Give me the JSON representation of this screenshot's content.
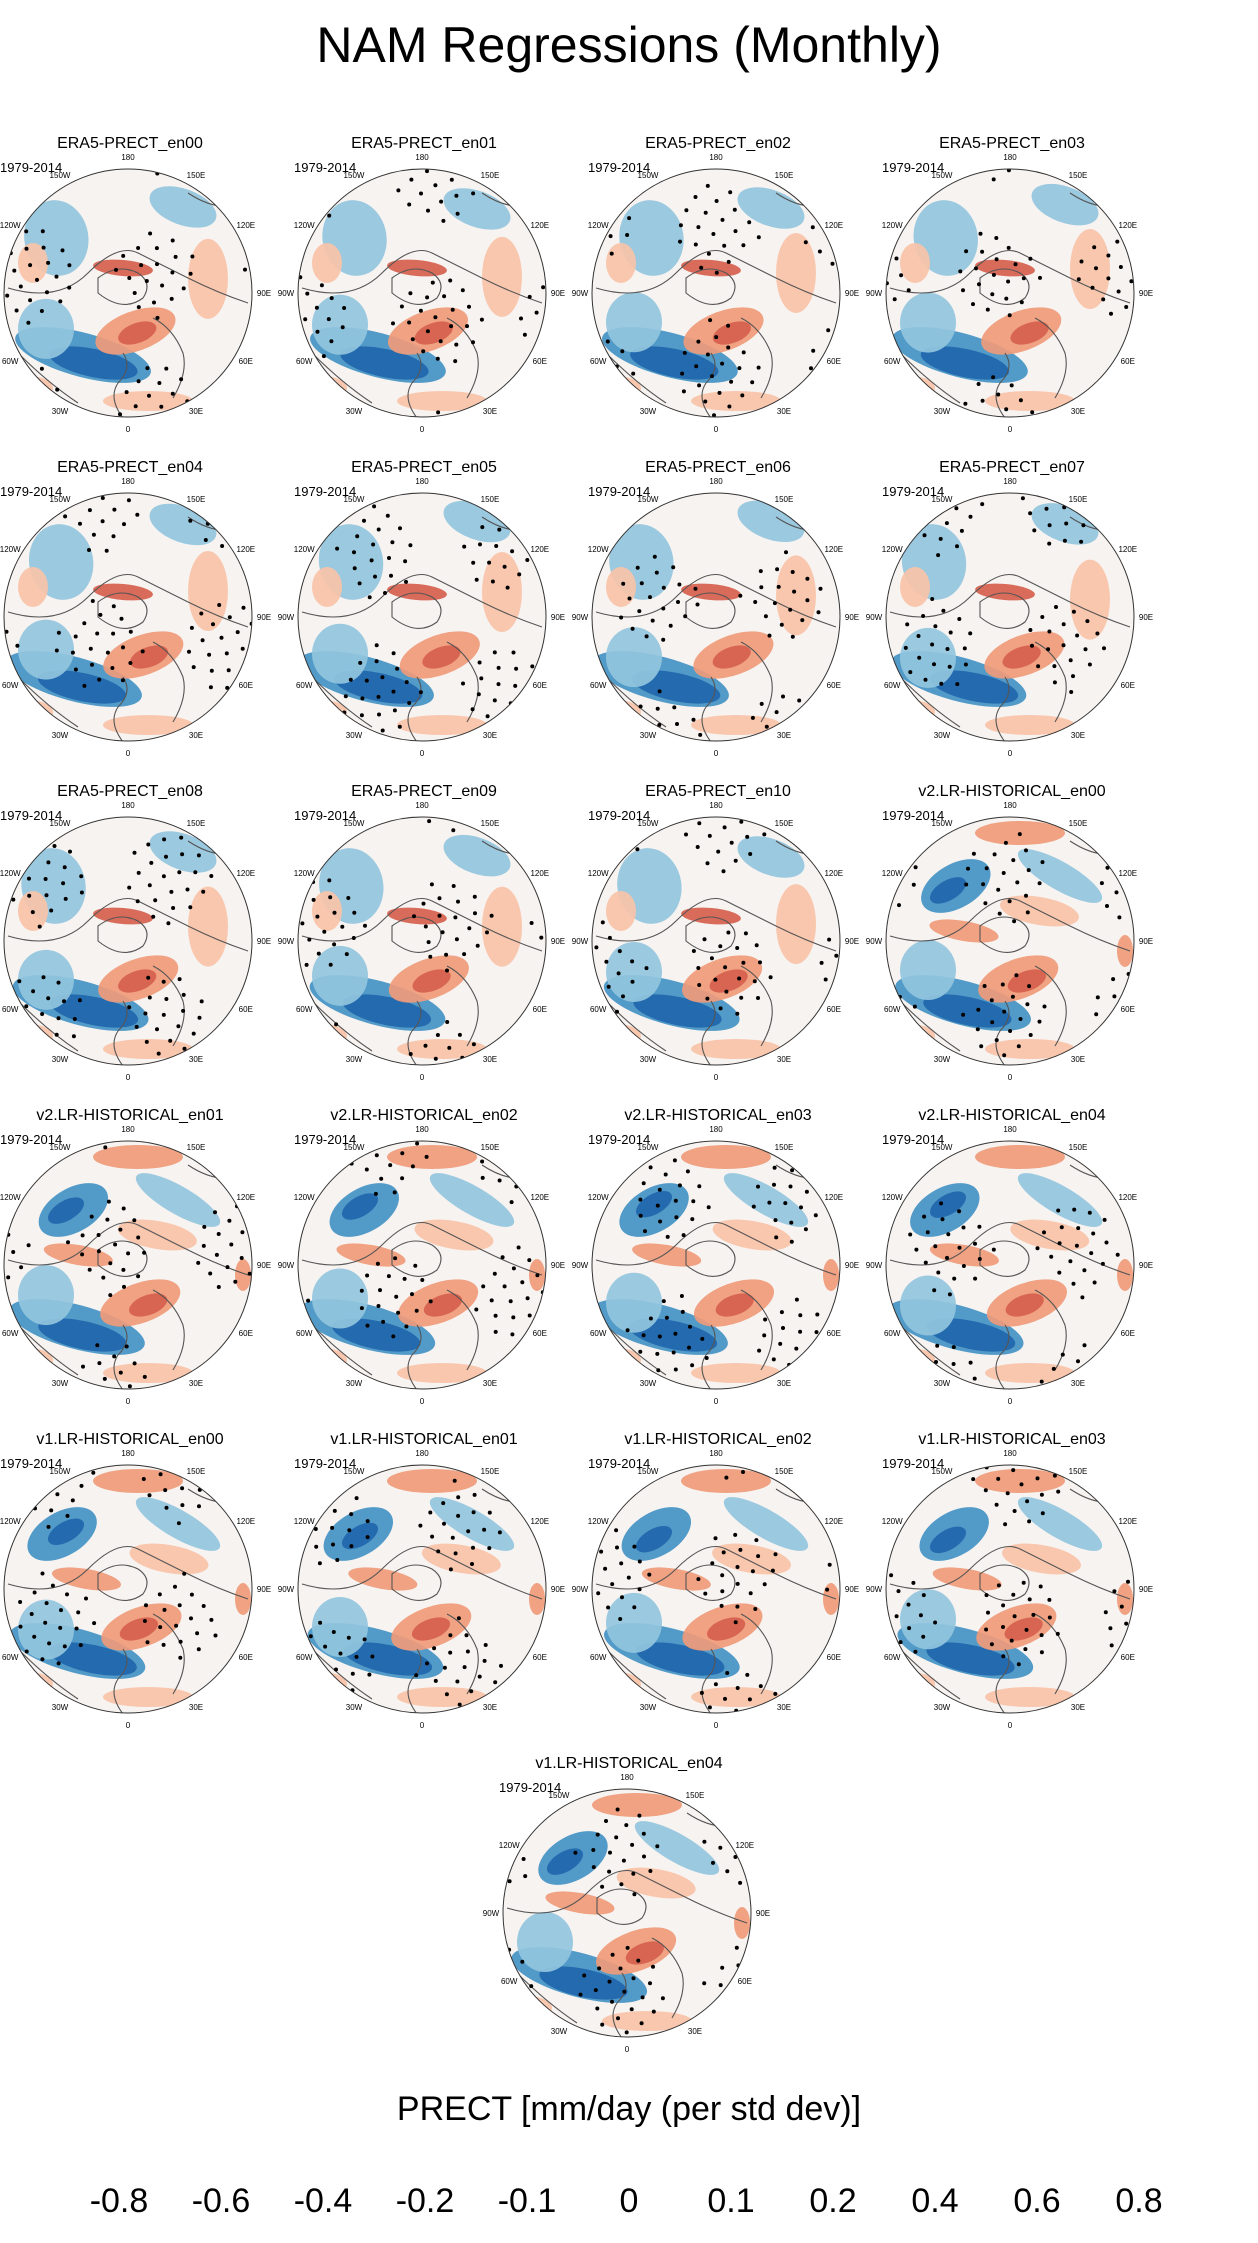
{
  "title": "NAM Regressions (Monthly)",
  "panels": [
    {
      "title": "ERA5-PRECT_en00",
      "period": "1979-2014",
      "style": "era5"
    },
    {
      "title": "ERA5-PRECT_en01",
      "period": "1979-2014",
      "style": "era5"
    },
    {
      "title": "ERA5-PRECT_en02",
      "period": "1979-2014",
      "style": "era5"
    },
    {
      "title": "ERA5-PRECT_en03",
      "period": "1979-2014",
      "style": "era5"
    },
    {
      "title": "ERA5-PRECT_en04",
      "period": "1979-2014",
      "style": "era5"
    },
    {
      "title": "ERA5-PRECT_en05",
      "period": "1979-2014",
      "style": "era5"
    },
    {
      "title": "ERA5-PRECT_en06",
      "period": "1979-2014",
      "style": "era5"
    },
    {
      "title": "ERA5-PRECT_en07",
      "period": "1979-2014",
      "style": "era5"
    },
    {
      "title": "ERA5-PRECT_en08",
      "period": "1979-2014",
      "style": "era5"
    },
    {
      "title": "ERA5-PRECT_en09",
      "period": "1979-2014",
      "style": "era5"
    },
    {
      "title": "ERA5-PRECT_en10",
      "period": "1979-2014",
      "style": "era5"
    },
    {
      "title": "v2.LR-HISTORICAL_en00",
      "period": "1979-2014",
      "style": "model"
    },
    {
      "title": "v2.LR-HISTORICAL_en01",
      "period": "1979-2014",
      "style": "model"
    },
    {
      "title": "v2.LR-HISTORICAL_en02",
      "period": "1979-2014",
      "style": "model"
    },
    {
      "title": "v2.LR-HISTORICAL_en03",
      "period": "1979-2014",
      "style": "model"
    },
    {
      "title": "v2.LR-HISTORICAL_en04",
      "period": "1979-2014",
      "style": "model"
    },
    {
      "title": "v1.LR-HISTORICAL_en00",
      "period": "1979-2014",
      "style": "model"
    },
    {
      "title": "v1.LR-HISTORICAL_en01",
      "period": "1979-2014",
      "style": "model"
    },
    {
      "title": "v1.LR-HISTORICAL_en02",
      "period": "1979-2014",
      "style": "model"
    },
    {
      "title": "v1.LR-HISTORICAL_en03",
      "period": "1979-2014",
      "style": "model"
    },
    {
      "title": "v1.LR-HISTORICAL_en04",
      "period": "1979-2014",
      "style": "model"
    }
  ],
  "longitude_labels": [
    "180",
    "150E",
    "120E",
    "90E",
    "60E",
    "30E",
    "0",
    "30W",
    "60W",
    "90W",
    "120W",
    "150W"
  ],
  "colorbar": {
    "title": "PRECT [mm/day (per std dev)]",
    "colors": [
      "#053061",
      "#2166ac",
      "#4393c3",
      "#92c5de",
      "#c6deed",
      "#e6eff5",
      "#fbe6dc",
      "#f8c3a8",
      "#ef9b7a",
      "#d6604d",
      "#b2182b",
      "#67001f"
    ],
    "labels": [
      "-0.8",
      "-0.6",
      "-0.4",
      "-0.2",
      "-0.1",
      "0",
      "0.1",
      "0.2",
      "0.4",
      "0.6",
      "0.8"
    ]
  },
  "map_colors": {
    "ocean_bg": "#f7f3f1",
    "coast": "#555555",
    "stipple": "#000000"
  }
}
